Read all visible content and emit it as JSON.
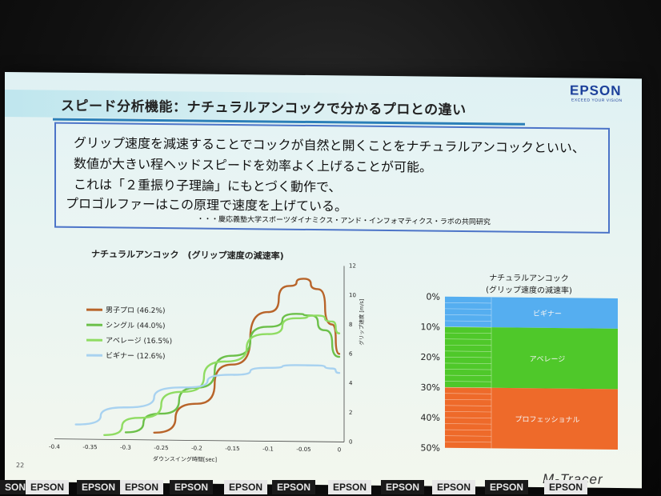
{
  "slide": {
    "title": "スピード分析機能：ナチュラルアンコックで分かるプロとの違い",
    "brand": "EPSON",
    "brand_tagline": "EXCEED YOUR VISION",
    "text_lines": [
      "グリップ速度を減速することでコックが自然と開くことをナチュラルアンコックといい、",
      "数値が大きい程ヘッドスピードを効率よく上げることが可能。",
      "これは「２重振り子理論」にもとづく動作で、",
      "プロゴルファーはこの原理で速度を上げている。"
    ],
    "citation": "・・・慶応義塾大学スポーツダイナミクス・アンド・インフォマティクス・ラボの共同研究",
    "page_number": "22",
    "product": "M-Tracer"
  },
  "bottom_banner": [
    "SON",
    "EPSON",
    "EPSON",
    "EPSON",
    "EPSON",
    "EPSON",
    "EPSON",
    "EPSON",
    "EPSON",
    "EPSON",
    "EPSON",
    "EPSON"
  ],
  "chart_data": [
    {
      "type": "line",
      "title": "ナチュラルアンコック　(グリップ速度の減速率)",
      "xlabel": "ダウンスイング時間[sec]",
      "ylabel": "グリップ速度 [m/s]",
      "x_ticks": [
        "-0.4",
        "-0.35",
        "-0.3",
        "-0.25",
        "-0.2",
        "-0.15",
        "-0.1",
        "-0.05",
        "0"
      ],
      "y_ticks": [
        "0",
        "2",
        "4",
        "6",
        "8",
        "10",
        "12"
      ],
      "xlim": [
        -0.4,
        0
      ],
      "ylim": [
        0,
        12
      ],
      "series": [
        {
          "name": "男子プロ (46.2%)",
          "color": "#b8642a",
          "x": [
            -0.26,
            -0.2,
            -0.15,
            -0.1,
            -0.07,
            -0.05,
            -0.03,
            -0.01,
            0
          ],
          "y": [
            0.5,
            2.5,
            5.2,
            8.8,
            10.6,
            11.1,
            10.4,
            8.0,
            6.0
          ]
        },
        {
          "name": "シングル (44.0%)",
          "color": "#6cc04a",
          "x": [
            -0.3,
            -0.25,
            -0.2,
            -0.15,
            -0.1,
            -0.06,
            -0.04,
            -0.02,
            0
          ],
          "y": [
            0.5,
            1.8,
            3.6,
            5.8,
            7.8,
            8.7,
            8.6,
            7.6,
            5.8
          ]
        },
        {
          "name": "アベレージ (16.5%)",
          "color": "#8fdc62",
          "x": [
            -0.33,
            -0.28,
            -0.22,
            -0.16,
            -0.1,
            -0.06,
            -0.03,
            -0.01,
            0
          ],
          "y": [
            0.3,
            1.5,
            3.3,
            5.4,
            7.3,
            8.4,
            8.6,
            8.2,
            7.4
          ]
        },
        {
          "name": "ビギナー (12.6%)",
          "color": "#a8d2f0",
          "x": [
            -0.37,
            -0.3,
            -0.22,
            -0.15,
            -0.1,
            -0.06,
            -0.03,
            -0.01,
            0
          ],
          "y": [
            1.0,
            2.2,
            3.6,
            4.5,
            5.0,
            5.2,
            5.2,
            5.0,
            4.7
          ]
        }
      ]
    },
    {
      "type": "bar",
      "title": "ナチュラルアンコック\n(グリップ速度の減速率)",
      "y_ticks": [
        "0%",
        "10%",
        "20%",
        "30%",
        "40%",
        "50%"
      ],
      "ylim": [
        0,
        50
      ],
      "bands": [
        {
          "label": "ビギナー",
          "from": 0,
          "to": 10,
          "color": "#55aef0"
        },
        {
          "label": "アベレージ",
          "from": 10,
          "to": 30,
          "color": "#4fc82a"
        },
        {
          "label": "プロフェッショナル",
          "from": 30,
          "to": 50,
          "color": "#ee6a2a"
        }
      ]
    }
  ]
}
